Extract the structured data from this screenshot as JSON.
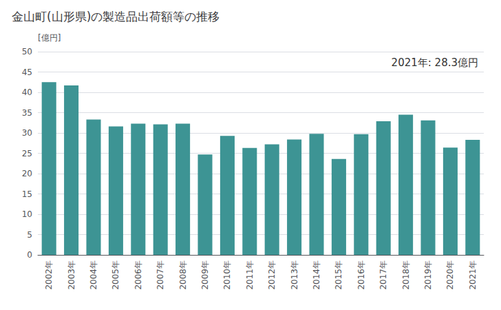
{
  "chart_data": {
    "type": "bar",
    "title": "金山町(山形県)の製造品出荷額等の推移",
    "ylabel": "[億円]",
    "annotation": "2021年: 28.3億円",
    "categories": [
      "2002年",
      "2003年",
      "2004年",
      "2005年",
      "2006年",
      "2007年",
      "2008年",
      "2009年",
      "2010年",
      "2011年",
      "2012年",
      "2013年",
      "2014年",
      "2015年",
      "2016年",
      "2017年",
      "2018年",
      "2019年",
      "2020年",
      "2021年"
    ],
    "values": [
      42.5,
      41.7,
      33.3,
      31.6,
      32.3,
      32.1,
      32.3,
      24.7,
      29.3,
      26.3,
      27.2,
      28.4,
      29.8,
      23.6,
      29.7,
      32.9,
      34.5,
      33.1,
      26.4,
      28.3
    ],
    "color": "#3d9494",
    "ylim": [
      0,
      50
    ],
    "yticks": [
      0,
      5,
      10,
      15,
      20,
      25,
      30,
      35,
      40,
      45,
      50
    ],
    "grid": true
  }
}
